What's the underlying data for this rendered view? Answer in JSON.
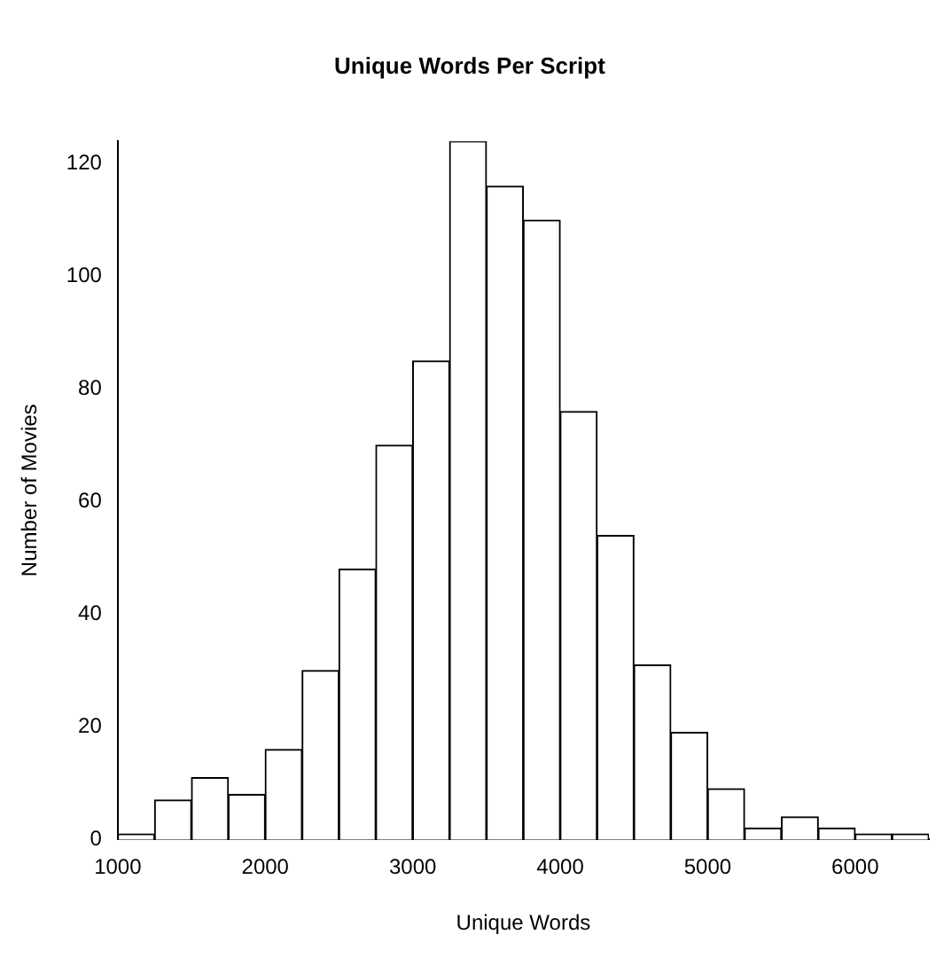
{
  "chart_data": {
    "type": "histogram",
    "title": "Unique Words Per Script",
    "xlabel": "Unique Words",
    "ylabel": "Number of Movies",
    "bins": [
      1000,
      1250,
      1500,
      1750,
      2000,
      2250,
      2500,
      2750,
      3000,
      3250,
      3500,
      3750,
      4000,
      4250,
      4500,
      4750,
      5000,
      5250,
      5500,
      5750,
      6000,
      6250,
      6500
    ],
    "values": [
      1,
      7,
      11,
      8,
      16,
      30,
      48,
      70,
      85,
      124,
      116,
      110,
      76,
      54,
      31,
      19,
      9,
      2,
      4,
      2,
      1,
      1
    ],
    "color": "#ffffff",
    "xlim": [
      1000,
      6500
    ],
    "xticks": [
      1000,
      2000,
      3000,
      4000,
      5000,
      6000
    ],
    "ylim": [
      0,
      124
    ],
    "yticks": [
      0,
      20,
      40,
      60,
      80,
      100,
      120
    ],
    "grid": false,
    "legend": false
  }
}
